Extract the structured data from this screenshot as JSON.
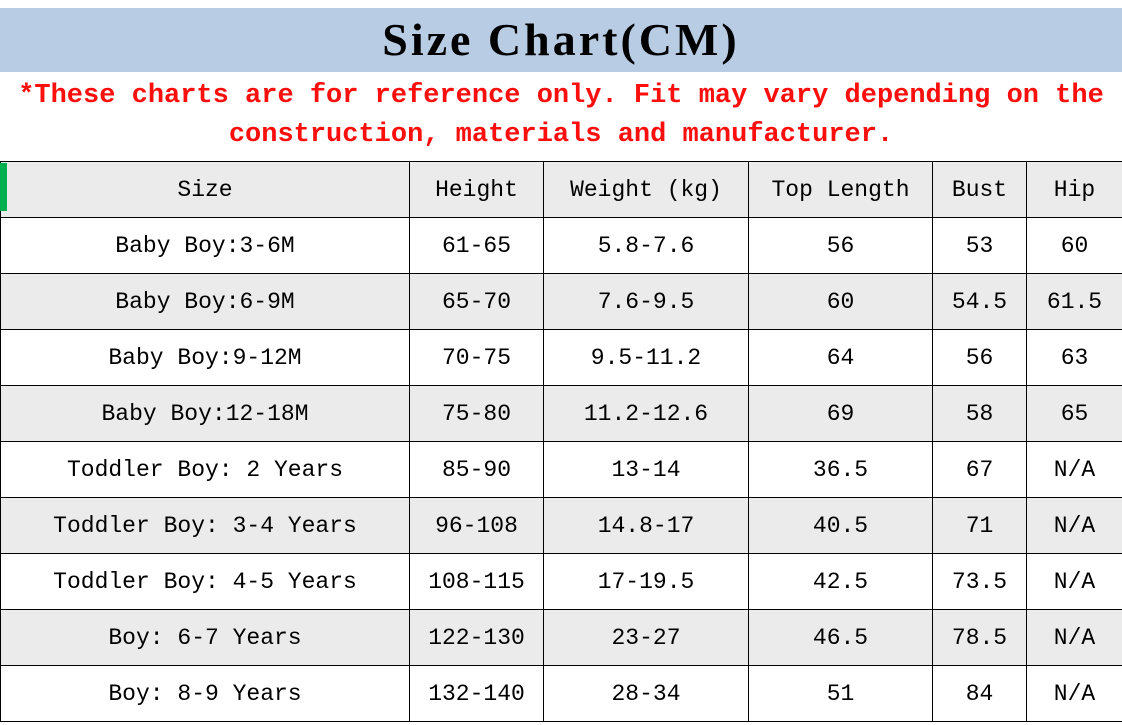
{
  "header": {
    "title": "Size Chart(CM)"
  },
  "disclaimer": "*These charts are for reference only. Fit may vary depending on the construction, materials and manufacturer.",
  "colors": {
    "header_bg": "#b8cce4",
    "disclaimer_text": "#fb0e0c",
    "row_alt_bg": "#ebebeb",
    "border": "#000000",
    "accent_green": "#00b050"
  },
  "chart_data": {
    "type": "table",
    "title": "Size Chart(CM)",
    "columns": [
      "Size",
      "Height",
      "Weight (kg)",
      "Top Length",
      "Bust",
      "Hip"
    ],
    "rows": [
      [
        "Baby Boy:3-6M",
        "61-65",
        "5.8-7.6",
        "56",
        "53",
        "60"
      ],
      [
        "Baby Boy:6-9M",
        "65-70",
        "7.6-9.5",
        "60",
        "54.5",
        "61.5"
      ],
      [
        "Baby Boy:9-12M",
        "70-75",
        "9.5-11.2",
        "64",
        "56",
        "63"
      ],
      [
        "Baby Boy:12-18M",
        "75-80",
        "11.2-12.6",
        "69",
        "58",
        "65"
      ],
      [
        "Toddler Boy: 2 Years",
        "85-90",
        "13-14",
        "36.5",
        "67",
        "N/A"
      ],
      [
        "Toddler Boy: 3-4 Years",
        "96-108",
        "14.8-17",
        "40.5",
        "71",
        "N/A"
      ],
      [
        "Toddler Boy: 4-5 Years",
        "108-115",
        "17-19.5",
        "42.5",
        "73.5",
        "N/A"
      ],
      [
        "Boy: 6-7 Years",
        "122-130",
        "23-27",
        "46.5",
        "78.5",
        "N/A"
      ],
      [
        "Boy: 8-9 Years",
        "132-140",
        "28-34",
        "51",
        "84",
        "N/A"
      ]
    ]
  }
}
